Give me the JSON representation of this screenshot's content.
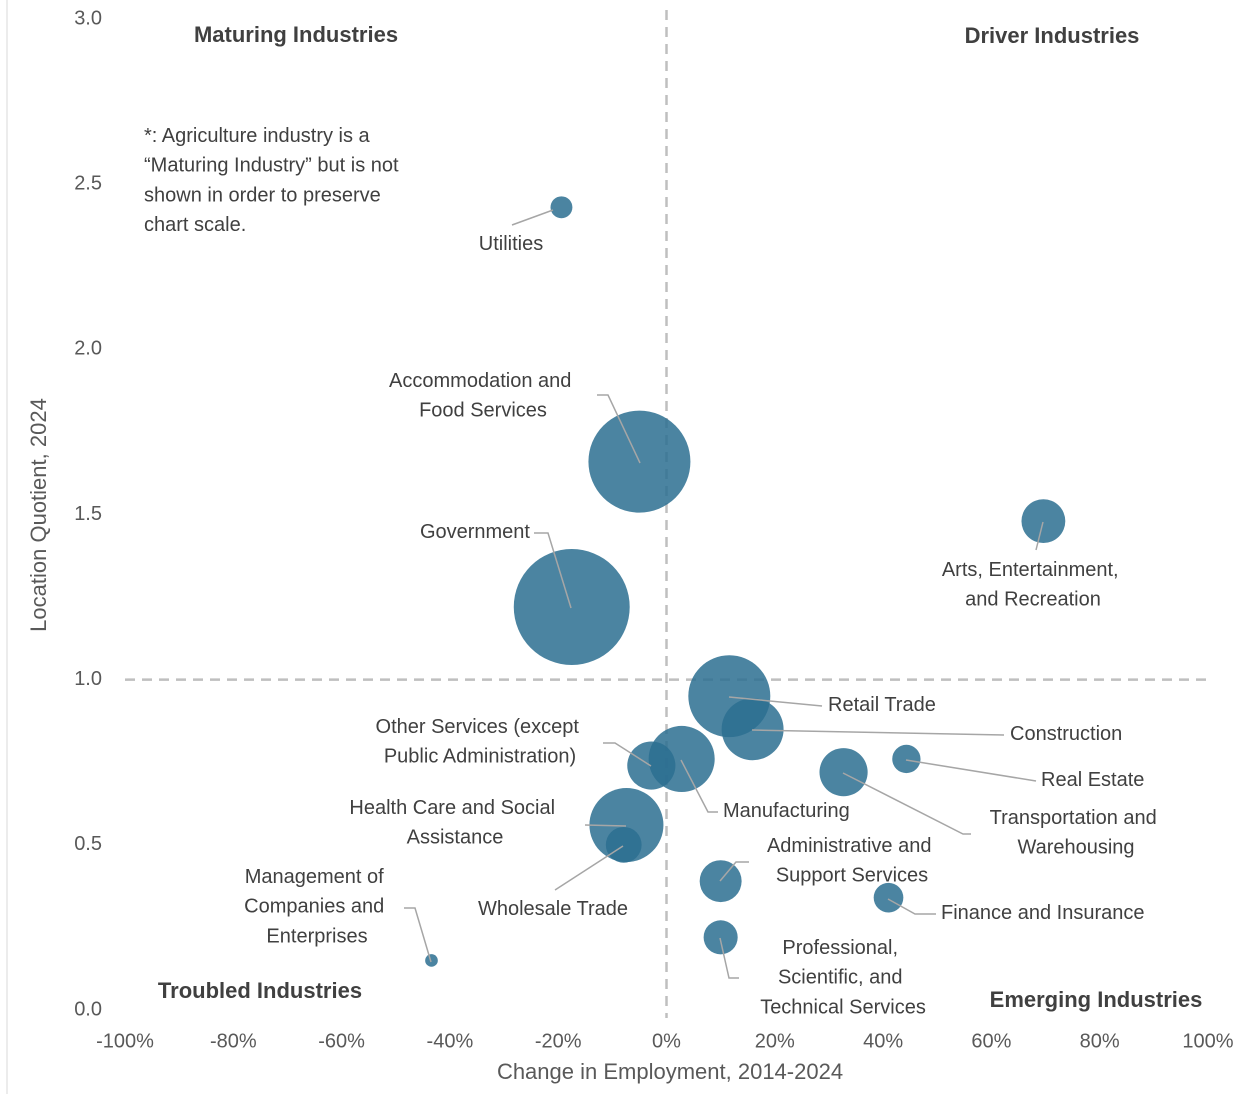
{
  "chart_data": {
    "type": "bubble",
    "x_label": "Change in Employment, 2014-2024",
    "y_label": "Location Quotient, 2024",
    "labels": [
      "Utilities",
      "Accommodation and Food Services",
      "Government",
      "Arts, Entertainment, and Recreation",
      "Retail Trade",
      "Construction",
      "Other Services (except Public Administration)",
      "Manufacturing",
      "Real Estate",
      "Transportation and Warehousing",
      "Health Care and Social Assistance",
      "Wholesale Trade",
      "Administrative and Support Services",
      "Finance and Insurance",
      "Professional, Scientific, and Technical Services",
      "Management of Companies and Enterprises"
    ],
    "x": [
      -19.4,
      -5.0,
      -17.5,
      69.6,
      11.6,
      15.9,
      -2.8,
      2.8,
      44.3,
      32.7,
      -7.4,
      -7.9,
      10.0,
      41.0,
      10.0,
      -43.4
    ],
    "values": [
      2.43,
      1.66,
      1.22,
      1.48,
      0.95,
      0.85,
      0.74,
      0.76,
      0.76,
      0.72,
      0.56,
      0.5,
      0.39,
      0.34,
      0.22,
      0.15
    ],
    "sizes": [
      12,
      260,
      336,
      48,
      168,
      96,
      58,
      109,
      20,
      58,
      137,
      32,
      44,
      22,
      29,
      4
    ],
    "color": "#2b6f90",
    "xlim": [
      -100,
      100
    ],
    "ylim": [
      0,
      3
    ],
    "xticks": [
      {
        "value": -100,
        "label": "-100%"
      },
      {
        "value": -80,
        "label": "-80%"
      },
      {
        "value": -60,
        "label": "-60%"
      },
      {
        "value": -40,
        "label": "-40%"
      },
      {
        "value": -20,
        "label": "-20%"
      },
      {
        "value": 0,
        "label": "0%"
      },
      {
        "value": 20,
        "label": "20%"
      },
      {
        "value": 40,
        "label": "40%"
      },
      {
        "value": 60,
        "label": "60%"
      },
      {
        "value": 80,
        "label": "80%"
      },
      {
        "value": 100,
        "label": "100%"
      }
    ],
    "yticks": [
      {
        "value": 0,
        "label": "0.0"
      },
      {
        "value": 0.5,
        "label": "0.5"
      },
      {
        "value": 1,
        "label": "1.0"
      },
      {
        "value": 1.5,
        "label": "1.5"
      },
      {
        "value": 2,
        "label": "2.0"
      },
      {
        "value": 2.5,
        "label": "2.5"
      },
      {
        "value": 3,
        "label": "3.0"
      }
    ],
    "reference_lines": {
      "x": 0,
      "y": 1
    },
    "annotations": [
      "Maturing Industries",
      "Driver Industries",
      "Troubled Industries",
      "Emerging Industries",
      "*: Agriculture industry is a “Maturing Industry” but is not shown in order to preserve chart scale."
    ]
  }
}
